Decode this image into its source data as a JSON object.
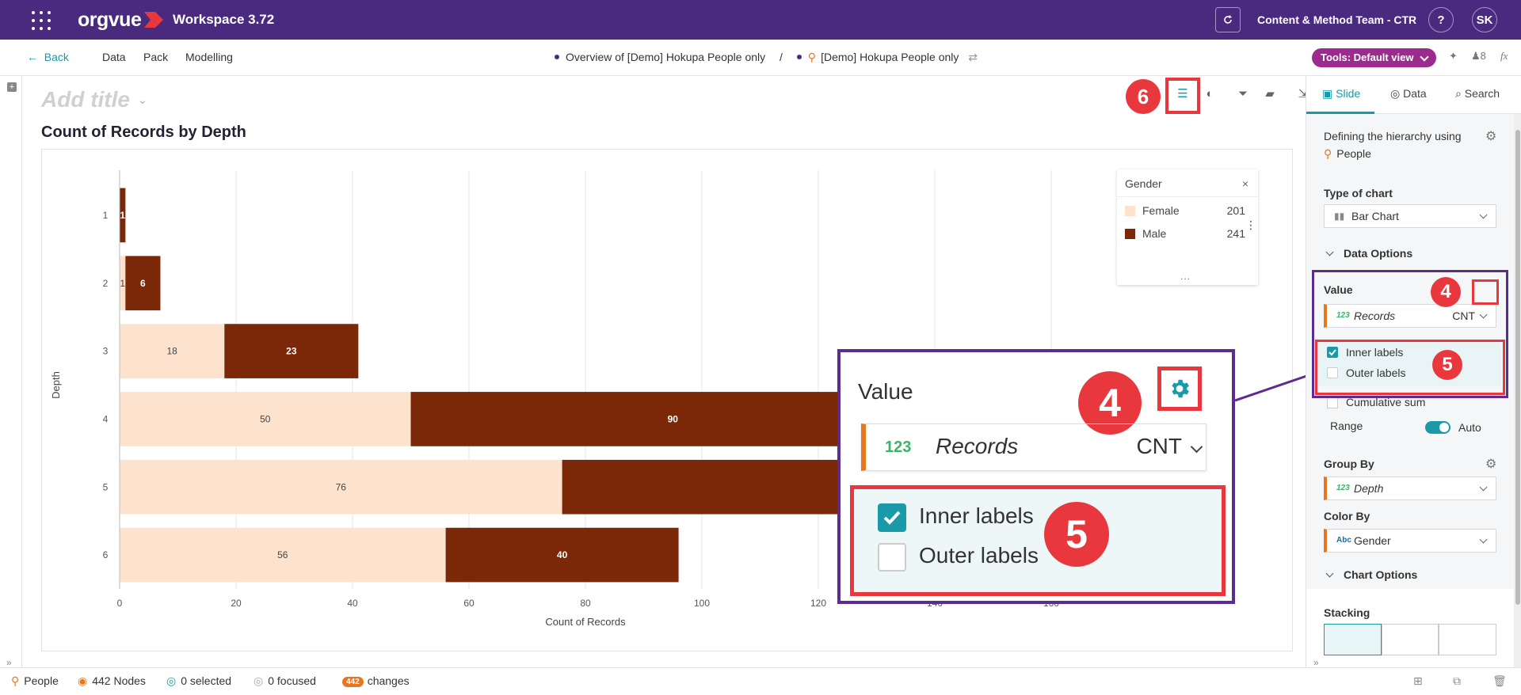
{
  "topbar": {
    "brand": "orgvue",
    "workspace": "Workspace 3.72",
    "team": "Content & Method Team - CTR",
    "help": "?",
    "avatar": "SK"
  },
  "nav": {
    "back": "Back",
    "items": [
      "Data",
      "Pack",
      "Modelling"
    ],
    "breadcrumb_view": "Overview of [Demo] Hokupa People only",
    "breadcrumb_sep": "/",
    "breadcrumb_dataset": "[Demo] Hokupa People only",
    "tools": "Tools: Default view",
    "users": "8",
    "fx": "fx"
  },
  "canvas": {
    "add_title": "Add title",
    "chart_title": "Count of Records by Depth"
  },
  "badges": {
    "six": "6",
    "four": "4",
    "five": "5"
  },
  "chart_data": {
    "type": "bar",
    "orientation": "horizontal",
    "stacked": true,
    "categories": [
      "1",
      "2",
      "3",
      "4",
      "5",
      "6"
    ],
    "series": [
      {
        "name": "Female",
        "color": "#fde3cd",
        "values": [
          0,
          1,
          18,
          50,
          76,
          56
        ]
      },
      {
        "name": "Male",
        "color": "#7b2808",
        "values": [
          1,
          6,
          23,
          90,
          null,
          40
        ]
      }
    ],
    "xlabel": "Count of Records",
    "ylabel": "Depth",
    "xlim": [
      0,
      160
    ],
    "xticks": [
      0,
      20,
      40,
      60,
      80,
      100,
      120,
      140,
      160
    ],
    "grid": true,
    "legend": "top-right"
  },
  "legend": {
    "title": "Gender",
    "close": "×",
    "items": [
      {
        "label": "Female",
        "count": "201",
        "color": "#fde3cd"
      },
      {
        "label": "Male",
        "count": "241",
        "color": "#7b2808"
      }
    ],
    "more": "..."
  },
  "zoom": {
    "value_label": "Value",
    "field_type": "123",
    "field_name": "Records",
    "field_agg": "CNT",
    "inner_labels": "Inner labels",
    "outer_labels": "Outer labels"
  },
  "panel": {
    "tabs": [
      "Slide",
      "Data",
      "Search"
    ],
    "hierarchy_label": "Defining the hierarchy using",
    "hierarchy_value": "People",
    "type_label": "Type of chart",
    "type_value": "Bar Chart",
    "data_options": "Data Options",
    "value_label": "Value",
    "value_type": "123",
    "value_field": "Records",
    "value_agg": "CNT",
    "inner_labels": "Inner labels",
    "outer_labels": "Outer labels",
    "cumulative": "Cumulative sum",
    "range_label": "Range",
    "range_value": "Auto",
    "group_by_label": "Group By",
    "group_by_type": "123",
    "group_by_value": "Depth",
    "color_by_label": "Color By",
    "color_by_type": "Abc",
    "color_by_value": "Gender",
    "chart_options": "Chart Options",
    "stacking": "Stacking"
  },
  "status": {
    "dataset": "People",
    "nodes": "442 Nodes",
    "selected": "0 selected",
    "focused": "0 focused",
    "changes_count": "442",
    "changes": "changes"
  }
}
